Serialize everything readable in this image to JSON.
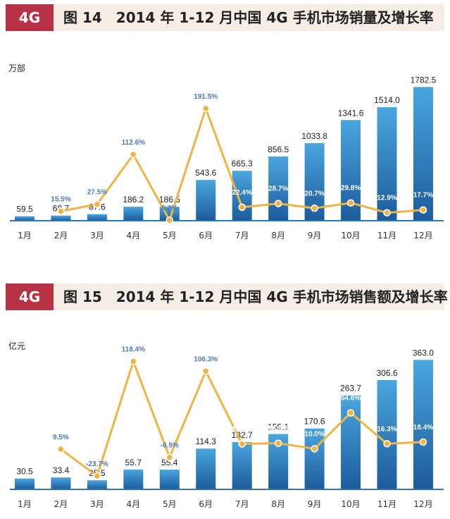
{
  "colors": {
    "tag": "#b83245",
    "header_bg": "#f6ede6",
    "bar_top": "#4aa6de",
    "bar_bottom": "#1c5b9c",
    "line": "#f0b443",
    "growth_label_above": "#4a78b8",
    "growth_label_inside": "#ffffff",
    "baseline": "#2f75b5"
  },
  "charts": [
    {
      "tag": "4G",
      "title": "图 14　2014 年 1-12 月中国 4G 手机市场销量及增长率",
      "unit": "万部"
    },
    {
      "tag": "4G",
      "title": "图 15　2014 年 1-12 月中国 4G 手机市场销售额及增长率",
      "unit": "亿元"
    }
  ],
  "chart_data": [
    {
      "type": "bar",
      "title": "图 14　2014 年 1-12 月中国 4G 手机市场销量及增长率",
      "ylabel": "万部",
      "categories": [
        "1月",
        "2月",
        "3月",
        "4月",
        "5月",
        "6月",
        "7月",
        "8月",
        "9月",
        "10月",
        "11月",
        "12月"
      ],
      "series": [
        {
          "name": "销量",
          "type": "bar",
          "values": [
            59.5,
            68.7,
            87.6,
            186.2,
            186.5,
            543.6,
            665.3,
            856.5,
            1033.8,
            1341.6,
            1514.0,
            1782.5
          ],
          "labels": [
            "59.5",
            "68.7",
            "87.6",
            "186.2",
            "186.5",
            "543.6",
            "665.3",
            "856.5",
            "1033.8",
            "1341.6",
            "1514.0",
            "1782.5"
          ]
        },
        {
          "name": "增长率",
          "type": "line",
          "values": [
            null,
            15.5,
            27.5,
            112.6,
            0.2,
            191.5,
            22.4,
            28.7,
            20.7,
            29.8,
            12.9,
            17.7
          ],
          "labels": [
            "",
            "15.5%",
            "27.5%",
            "112.6%",
            "0.2%",
            "191.5%",
            "22.4%",
            "28.7%",
            "20.7%",
            "29.8%",
            "12.9%",
            "17.7%"
          ]
        }
      ]
    },
    {
      "type": "bar",
      "title": "图 15　2014 年 1-12 月中国 4G 手机市场销售额及增长率",
      "ylabel": "亿元",
      "categories": [
        "1月",
        "2月",
        "3月",
        "4月",
        "5月",
        "6月",
        "7月",
        "8月",
        "9月",
        "10月",
        "11月",
        "12月"
      ],
      "series": [
        {
          "name": "销售额",
          "type": "bar",
          "values": [
            30.5,
            33.4,
            25.5,
            55.7,
            55.4,
            114.3,
            132.7,
            155.1,
            170.6,
            263.7,
            306.6,
            363.0
          ],
          "labels": [
            "30.5",
            "33.4",
            "25.5",
            "55.7",
            "55.4",
            "114.3",
            "132.7",
            "155.1",
            "170.6",
            "263.7",
            "306.6",
            "363.0"
          ]
        },
        {
          "name": "增长率",
          "type": "line",
          "values": [
            null,
            9.5,
            -23.7,
            118.4,
            -0.5,
            106.3,
            16.1,
            16.9,
            10.0,
            54.6,
            16.3,
            18.4
          ],
          "labels": [
            "",
            "9.5%",
            "-23.7%",
            "118.4%",
            "-0.5%",
            "106.3%",
            "16.1%",
            "16.9%",
            "10.0%",
            "54.6%",
            "16.3%",
            "18.4%"
          ]
        }
      ]
    }
  ]
}
